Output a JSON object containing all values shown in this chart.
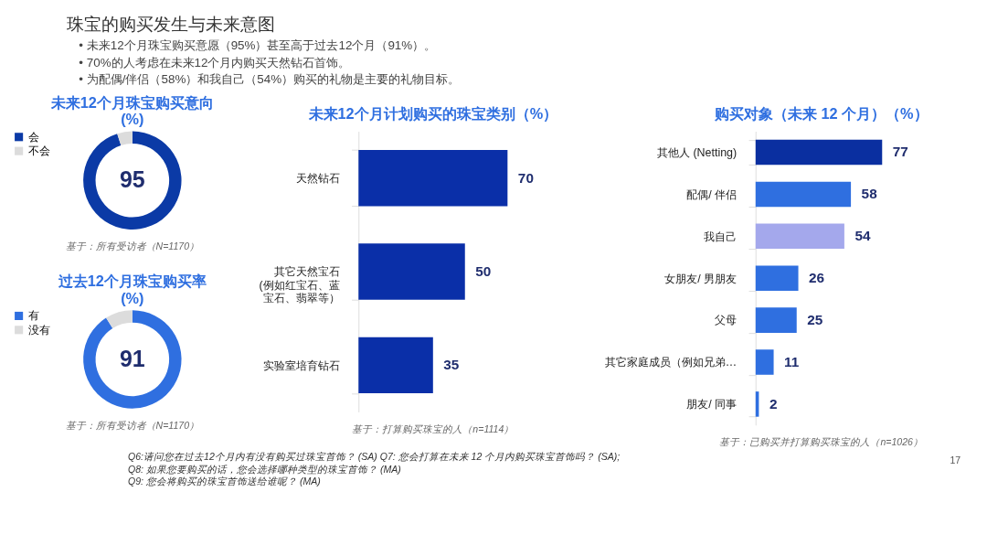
{
  "chart_data": [
    {
      "type": "other",
      "title": "珠宝的购买发生与未来意图",
      "annotations": [
        "•  未来12个月珠宝购买意愿（95%）甚至高于过去12个月（91%）。",
        "•  70%的人考虑在未来12个月内购买天然钻石首饰。",
        "•  为配偶/伴侣（58%）和我自己（54%）购买的礼物是主要的礼物目标。"
      ]
    },
    {
      "type": "donut",
      "title": "未来12个月珠宝购买意向(%)",
      "categories": [
        "会",
        "不会"
      ],
      "values": [
        95,
        5
      ],
      "colors": [
        "#0b3aa6",
        "#dcdcdc"
      ],
      "value_labels": [
        "95",
        null
      ],
      "legend": "left",
      "annotations": [
        "基于：所有受访者（N=1170）"
      ]
    },
    {
      "type": "donut",
      "title": "过去12个月珠宝购买率(%)",
      "categories": [
        "有",
        "没有"
      ],
      "values": [
        91,
        9
      ],
      "colors": [
        "#2f6fe0",
        "#dcdcdc"
      ],
      "value_labels": [
        "91",
        null
      ],
      "legend": "left",
      "annotations": [
        "基于：所有受访者（N=1170）"
      ]
    },
    {
      "type": "bar",
      "orientation": "horizontal",
      "title": "未来12个月计划购买的珠宝类别（%）",
      "categories": [
        "天然钻石",
        "其它天然宝石(例如红宝石、蓝宝石、翡翠等）",
        "实验室培育钻石"
      ],
      "values": [
        70,
        50,
        35
      ],
      "colors": [
        "#0a2fa8",
        "#0a2fa8",
        "#0a2fa8"
      ],
      "data_labels": true,
      "annotations": [
        "基于：打算购买珠宝的人（n=1114）"
      ]
    },
    {
      "type": "bar",
      "orientation": "horizontal",
      "title": "购买对象（未来 12 个月）（%）",
      "categories": [
        "其他人 (Netting)",
        "配偶/ 伴侣",
        "我自己",
        "女朋友/ 男朋友",
        "父母",
        "其它家庭成员（例如兄弟…",
        "朋友/ 同事"
      ],
      "values": [
        77,
        58,
        54,
        26,
        25,
        11,
        2
      ],
      "colors": [
        "#0a2fa0",
        "#2f6fe0",
        "#a4a8ec",
        "#2f6fe0",
        "#2f6fe0",
        "#2f6fe0",
        "#2f6fe0"
      ],
      "data_labels": true,
      "annotations": [
        "基于：已购买并打算购买珠宝的人（n=1026）"
      ]
    },
    {
      "type": "other",
      "subtitle": "17",
      "annotations": [
        "Q6:请问您在过去12个月内有没有购买过珠宝首饰？ (SA) Q7: 您会打算在未来 12 个月内购买珠宝首饰吗？ (SA);",
        "Q8: 如果您要购买的话，您会选择哪种类型的珠宝首饰？ (MA)",
        "Q9: 您会将购买的珠宝首饰送给谁呢？ (MA)"
      ]
    }
  ]
}
